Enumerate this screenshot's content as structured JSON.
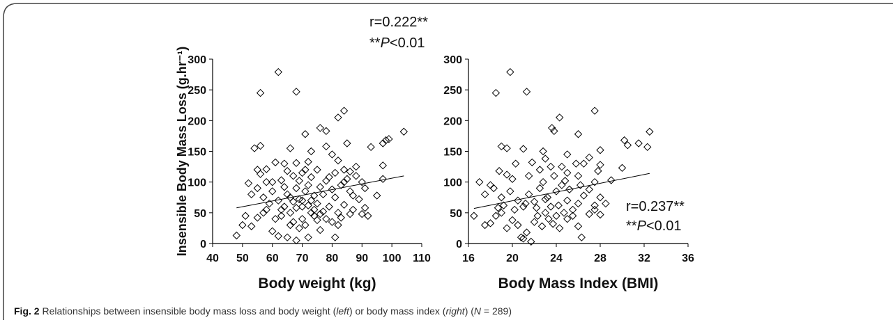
{
  "chart_data": [
    {
      "type": "scatter",
      "ylabel": "Insensible Body Mass Loss (g.hr⁻¹)",
      "xlabel": "Body weight (kg)",
      "annotations": [
        [
          "r=0.222**"
        ],
        [
          "**",
          "P",
          "<0.01"
        ]
      ],
      "xlim": [
        40,
        110
      ],
      "ylim": [
        0,
        300
      ],
      "xticks": [
        40,
        50,
        60,
        70,
        80,
        90,
        100,
        110
      ],
      "yticks": [
        0,
        50,
        100,
        150,
        200,
        250,
        300
      ],
      "trend": {
        "x": [
          48,
          104
        ],
        "y": [
          58,
          110
        ]
      },
      "x": [
        62,
        56,
        68,
        84,
        82,
        76,
        78,
        71,
        104,
        98,
        97,
        99,
        85,
        93,
        78,
        54,
        56,
        66,
        73,
        80,
        61,
        64,
        68,
        72,
        82,
        88,
        97,
        55,
        58,
        56,
        60,
        63,
        70,
        75,
        84,
        86,
        90,
        97,
        52,
        55,
        53,
        57,
        60,
        62,
        64,
        65,
        66,
        67,
        68,
        69,
        70,
        71,
        72,
        73,
        74,
        75,
        76,
        77,
        78,
        79,
        80,
        81,
        82,
        83,
        84,
        85,
        86,
        87,
        89,
        91,
        92,
        95,
        90,
        51,
        50,
        48,
        53,
        55,
        57,
        58,
        60,
        61,
        62,
        63,
        65,
        66,
        67,
        68,
        69,
        70,
        71,
        72,
        73,
        74,
        75,
        76,
        77,
        78,
        80,
        81,
        82,
        83,
        86,
        87,
        63,
        64,
        59,
        58,
        65,
        67,
        69,
        71,
        73,
        66,
        68,
        70,
        72,
        74,
        76,
        79,
        81,
        84,
        88,
        91
      ],
      "y": [
        279,
        245,
        247,
        216,
        205,
        188,
        183,
        178,
        182,
        168,
        163,
        170,
        163,
        157,
        158,
        155,
        159,
        155,
        150,
        145,
        132,
        130,
        131,
        133,
        135,
        125,
        127,
        120,
        121,
        113,
        100,
        103,
        115,
        120,
        120,
        117,
        100,
        105,
        98,
        90,
        80,
        75,
        85,
        70,
        60,
        80,
        75,
        68,
        90,
        72,
        60,
        85,
        95,
        70,
        55,
        65,
        48,
        80,
        102,
        60,
        88,
        75,
        50,
        95,
        63,
        105,
        85,
        78,
        72,
        58,
        45,
        78,
        48,
        45,
        30,
        13,
        28,
        42,
        50,
        55,
        20,
        40,
        12,
        45,
        10,
        30,
        35,
        5,
        25,
        40,
        30,
        10,
        50,
        45,
        38,
        22,
        52,
        40,
        35,
        10,
        30,
        42,
        48,
        55,
        55,
        92,
        65,
        100,
        118,
        110,
        102,
        120,
        108,
        50,
        58,
        70,
        62,
        78,
        92,
        108,
        115,
        100,
        110,
        90
      ]
    },
    {
      "type": "scatter",
      "xlabel": "Body Mass Index (BMI)",
      "annotations": [
        [
          "r=0.237**"
        ],
        [
          "**",
          "P",
          "<0.01"
        ]
      ],
      "xlim": [
        16,
        36
      ],
      "ylim": [
        0,
        300
      ],
      "xticks": [
        16,
        20,
        24,
        28,
        32,
        36
      ],
      "yticks": [
        0,
        50,
        100,
        150,
        200,
        250,
        300
      ],
      "trend": {
        "x": [
          16.5,
          32.5
        ],
        "y": [
          57,
          114
        ]
      },
      "x": [
        19.8,
        18.5,
        21.3,
        27.5,
        24.3,
        23.6,
        23.8,
        26,
        32.5,
        30.2,
        31.5,
        30.5,
        32.3,
        28,
        19,
        19.5,
        21,
        22.8,
        25,
        27,
        20.3,
        21.8,
        23,
        24.5,
        26.5,
        28,
        30,
        17,
        18,
        18.8,
        19.5,
        20,
        21.5,
        22.5,
        23.5,
        25,
        26,
        27.5,
        29,
        17.5,
        18.3,
        19,
        19.8,
        20.5,
        21,
        21.5,
        22,
        22.5,
        23,
        23.5,
        24,
        24.5,
        25,
        25.5,
        26,
        26.5,
        27,
        27.5,
        28,
        28.5,
        16.5,
        17.5,
        18,
        18.5,
        19,
        19.5,
        20,
        20.5,
        20.8,
        21,
        21.3,
        21.7,
        22,
        22.3,
        22.7,
        23,
        23.3,
        23.7,
        24,
        24.3,
        24.7,
        25,
        25.5,
        26,
        26.3,
        27,
        27.5,
        28,
        20.2,
        21.2,
        22.2,
        23.2,
        24.2,
        25.2,
        26.2,
        19.2,
        18.7,
        22.8,
        23.8,
        24.8,
        25.8,
        27.8
      ],
      "y": [
        279,
        245,
        247,
        216,
        205,
        188,
        183,
        178,
        182,
        168,
        163,
        160,
        157,
        152,
        158,
        155,
        154,
        150,
        145,
        140,
        130,
        132,
        138,
        125,
        130,
        128,
        123,
        100,
        95,
        118,
        112,
        105,
        110,
        120,
        125,
        115,
        110,
        100,
        103,
        80,
        90,
        75,
        85,
        70,
        60,
        80,
        68,
        90,
        72,
        60,
        85,
        95,
        70,
        55,
        65,
        78,
        88,
        62,
        75,
        65,
        45,
        30,
        33,
        45,
        50,
        25,
        38,
        30,
        10,
        8,
        18,
        3,
        35,
        45,
        28,
        50,
        40,
        32,
        45,
        25,
        50,
        40,
        45,
        28,
        10,
        48,
        55,
        47,
        55,
        65,
        58,
        75,
        62,
        88,
        95,
        62,
        58,
        100,
        110,
        102,
        130,
        118
      ]
    }
  ],
  "caption": {
    "label": "Fig. 2",
    "parts": [
      "Relationships between insensible body mass loss and body weight (",
      "left",
      ") or body mass index (",
      "right",
      ") (",
      "N",
      " = 289)"
    ]
  }
}
